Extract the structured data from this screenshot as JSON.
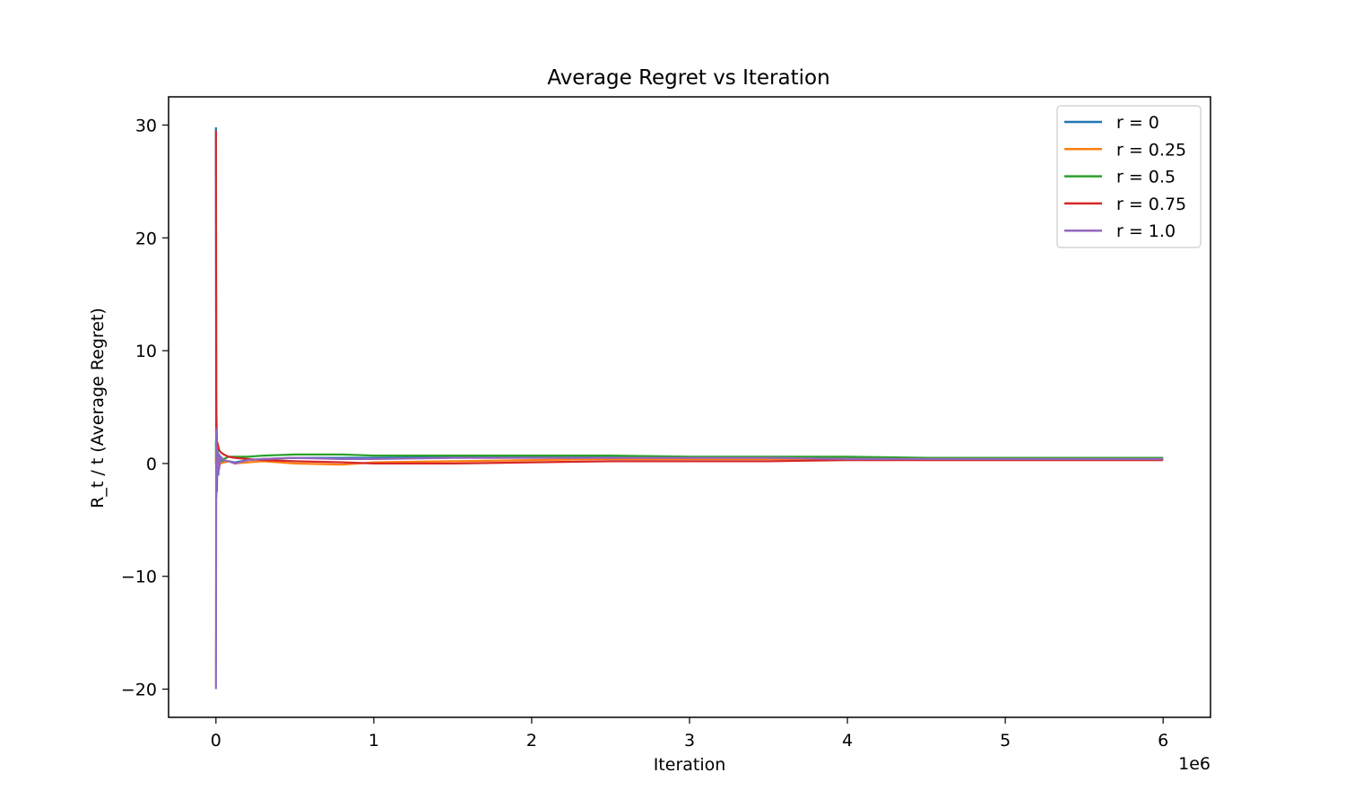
{
  "chart_data": {
    "type": "line",
    "title": "Average Regret vs Iteration",
    "xlabel": "Iteration",
    "ylabel": "R_t / t (Average Regret)",
    "x_offset_label": "1e6",
    "xlim": [
      -0.3,
      6.3
    ],
    "ylim": [
      -22.5,
      32.5
    ],
    "x_ticks": [
      0,
      1,
      2,
      3,
      4,
      5,
      6
    ],
    "x_tick_labels": [
      "0",
      "1",
      "2",
      "3",
      "4",
      "5",
      "6"
    ],
    "y_ticks": [
      -20,
      -10,
      0,
      10,
      20,
      30
    ],
    "y_tick_labels": [
      "−20",
      "−10",
      "0",
      "10",
      "20",
      "30"
    ],
    "legend_position": "top-right",
    "grid": false,
    "series": [
      {
        "name": "r = 0",
        "color": "#1f77b4",
        "x": [
          0,
          0.002,
          0.004,
          0.006,
          0.01,
          0.015,
          0.02,
          0.03,
          0.05,
          0.08,
          0.12,
          0.2,
          0.3,
          0.5,
          0.8,
          1.0,
          1.5,
          2.0,
          2.5,
          3.0,
          3.5,
          4.0,
          4.5,
          5.0,
          5.5,
          6.0
        ],
        "y": [
          29.8,
          -3.0,
          3.0,
          -2.5,
          1.5,
          -1.0,
          0.8,
          0.3,
          0.1,
          0.2,
          0.1,
          0.3,
          0.4,
          0.5,
          0.5,
          0.5,
          0.6,
          0.6,
          0.6,
          0.5,
          0.5,
          0.5,
          0.5,
          0.5,
          0.5,
          0.5
        ]
      },
      {
        "name": "r = 0.25",
        "color": "#ff7f0e",
        "x": [
          0,
          0.002,
          0.004,
          0.006,
          0.01,
          0.015,
          0.02,
          0.03,
          0.05,
          0.08,
          0.12,
          0.2,
          0.3,
          0.5,
          0.8,
          1.0,
          1.5,
          2.0,
          2.5,
          3.0,
          3.5,
          4.0,
          4.5,
          5.0,
          5.5,
          6.0
        ],
        "y": [
          0,
          1.5,
          -1.0,
          1.0,
          0.3,
          0.5,
          0.2,
          0.0,
          0.1,
          0.2,
          0.0,
          0.1,
          0.2,
          0.0,
          -0.1,
          0.1,
          0.2,
          0.3,
          0.4,
          0.4,
          0.4,
          0.4,
          0.4,
          0.4,
          0.4,
          0.4
        ]
      },
      {
        "name": "r = 0.5",
        "color": "#2ca02c",
        "x": [
          0,
          0.002,
          0.004,
          0.006,
          0.01,
          0.015,
          0.02,
          0.03,
          0.05,
          0.08,
          0.12,
          0.2,
          0.3,
          0.5,
          0.8,
          1.0,
          1.5,
          2.0,
          2.5,
          3.0,
          3.5,
          4.0,
          4.5,
          5.0,
          5.5,
          6.0
        ],
        "y": [
          2.0,
          -1.5,
          1.2,
          -0.6,
          0.5,
          -0.3,
          0.3,
          0.2,
          0.4,
          0.6,
          0.6,
          0.6,
          0.7,
          0.8,
          0.8,
          0.7,
          0.7,
          0.7,
          0.7,
          0.6,
          0.6,
          0.6,
          0.5,
          0.5,
          0.5,
          0.5
        ]
      },
      {
        "name": "r = 0.75",
        "color": "#d62728",
        "x": [
          0,
          0.002,
          0.004,
          0.006,
          0.01,
          0.015,
          0.02,
          0.03,
          0.05,
          0.08,
          0.12,
          0.2,
          0.3,
          0.5,
          0.8,
          1.0,
          1.5,
          2.0,
          2.5,
          3.0,
          3.5,
          4.0,
          4.5,
          5.0,
          5.5,
          6.0
        ],
        "y": [
          29.5,
          6.0,
          3.5,
          2.0,
          1.8,
          1.5,
          1.2,
          1.0,
          0.8,
          0.6,
          0.5,
          0.4,
          0.3,
          0.2,
          0.1,
          0.0,
          0.0,
          0.1,
          0.2,
          0.2,
          0.2,
          0.3,
          0.3,
          0.3,
          0.3,
          0.3
        ]
      },
      {
        "name": "r = 1.0",
        "color": "#9467bd",
        "x": [
          0,
          0.002,
          0.004,
          0.006,
          0.01,
          0.015,
          0.02,
          0.03,
          0.05,
          0.08,
          0.12,
          0.2,
          0.3,
          0.5,
          0.8,
          1.0,
          1.5,
          2.0,
          2.5,
          3.0,
          3.5,
          4.0,
          4.5,
          5.0,
          5.5,
          6.0
        ],
        "y": [
          -20.0,
          3.0,
          -1.5,
          1.5,
          -1.0,
          0.8,
          -0.5,
          0.6,
          0.3,
          0.2,
          0.0,
          0.3,
          0.4,
          0.5,
          0.4,
          0.4,
          0.5,
          0.5,
          0.5,
          0.5,
          0.5,
          0.4,
          0.4,
          0.4,
          0.4,
          0.4
        ]
      }
    ]
  }
}
